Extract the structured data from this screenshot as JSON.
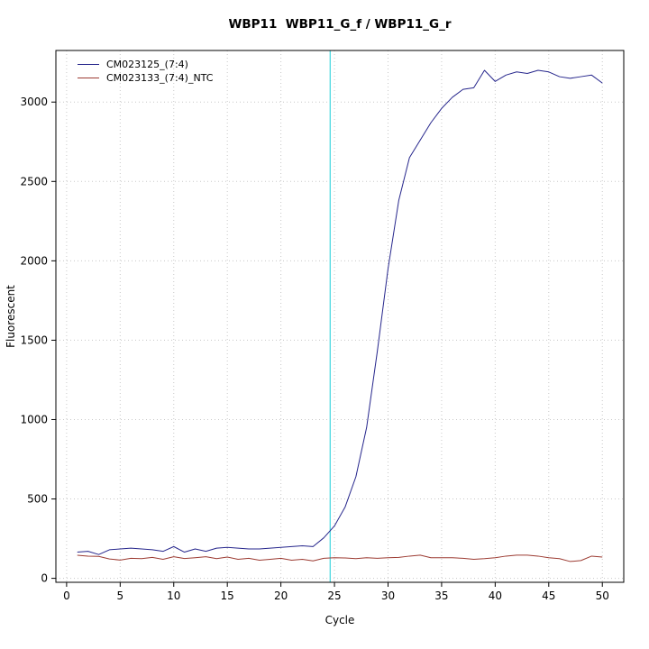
{
  "chart_data": {
    "type": "line",
    "title": "WBP11  WBP11_G_f / WBP11_G_r",
    "xlabel": "Cycle",
    "ylabel": "Fluorescent",
    "xlim": [
      -1,
      52
    ],
    "ylim": [
      -25,
      3325
    ],
    "x_ticks": [
      0,
      5,
      10,
      15,
      20,
      25,
      30,
      35,
      40,
      45,
      50
    ],
    "y_ticks": [
      0,
      500,
      1000,
      1500,
      2000,
      2500,
      3000
    ],
    "grid": true,
    "grid_color": "#c8c8c8",
    "frame_color": "#000000",
    "legend_position": "top-left",
    "threshold_line": {
      "x": 24.6,
      "color": "#4fd8e0"
    },
    "x": [
      1,
      2,
      3,
      4,
      5,
      6,
      7,
      8,
      9,
      10,
      11,
      12,
      13,
      14,
      15,
      16,
      17,
      18,
      19,
      20,
      21,
      22,
      23,
      24,
      25,
      26,
      27,
      28,
      29,
      30,
      31,
      32,
      33,
      34,
      35,
      36,
      37,
      38,
      39,
      40,
      41,
      42,
      43,
      44,
      45,
      46,
      47,
      48,
      49,
      50
    ],
    "series": [
      {
        "name": "CM023125_(7:4)",
        "color": "#26268c",
        "values": [
          165,
          170,
          150,
          180,
          185,
          190,
          185,
          180,
          170,
          200,
          165,
          185,
          170,
          190,
          195,
          190,
          185,
          185,
          190,
          195,
          200,
          205,
          200,
          255,
          330,
          450,
          640,
          950,
          1430,
          1950,
          2380,
          2650,
          2760,
          2870,
          2960,
          3030,
          3080,
          3090,
          3200,
          3130,
          3170,
          3190,
          3180,
          3200,
          3190,
          3160,
          3150,
          3160,
          3170,
          3120
        ]
      },
      {
        "name": "CM023133_(7:4)_NTC",
        "color": "#9c3b32",
        "values": [
          145,
          140,
          138,
          122,
          115,
          126,
          124,
          132,
          120,
          136,
          125,
          130,
          136,
          124,
          134,
          120,
          126,
          114,
          120,
          126,
          114,
          120,
          110,
          126,
          130,
          128,
          124,
          130,
          126,
          130,
          132,
          140,
          146,
          130,
          130,
          130,
          126,
          120,
          124,
          130,
          140,
          146,
          146,
          140,
          130,
          124,
          106,
          112,
          140,
          134
        ]
      }
    ]
  }
}
